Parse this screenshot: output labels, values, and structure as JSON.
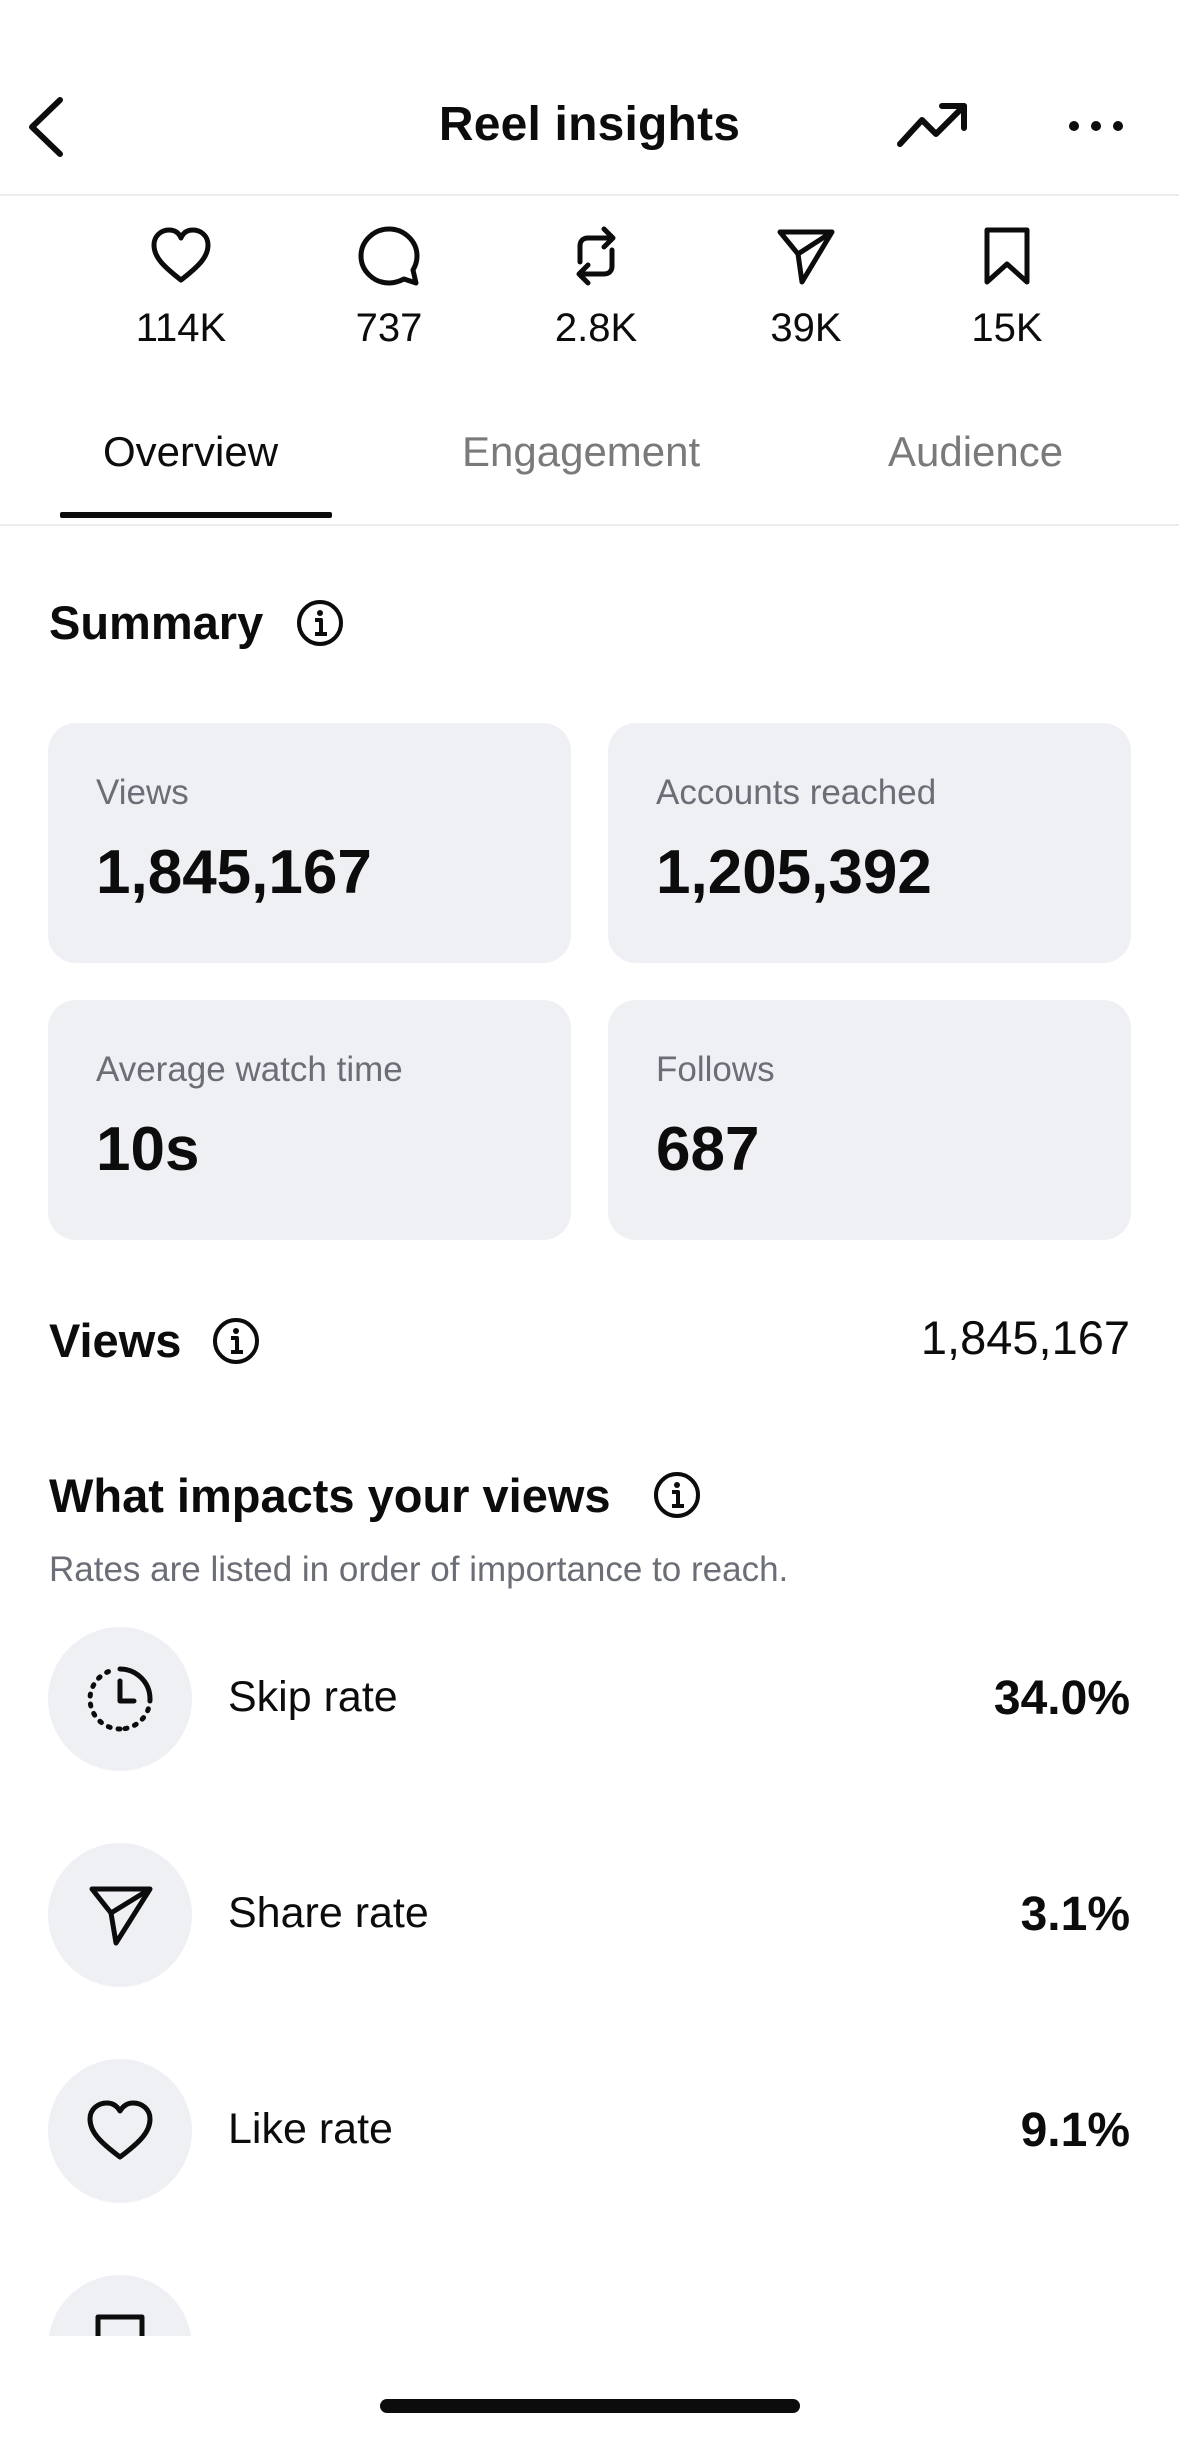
{
  "header": {
    "title": "Reel insights"
  },
  "stats": [
    {
      "icon": "heart-icon",
      "value": "114K"
    },
    {
      "icon": "comment-icon",
      "value": "737"
    },
    {
      "icon": "repost-icon",
      "value": "2.8K"
    },
    {
      "icon": "share-icon",
      "value": "39K"
    },
    {
      "icon": "bookmark-icon",
      "value": "15K"
    }
  ],
  "tabs": [
    "Overview",
    "Engagement",
    "Audience"
  ],
  "active_tab": "Overview",
  "summary": {
    "title": "Summary",
    "cards": [
      {
        "label": "Views",
        "value": "1,845,167"
      },
      {
        "label": "Accounts reached",
        "value": "1,205,392"
      },
      {
        "label": "Average watch time",
        "value": "10s"
      },
      {
        "label": "Follows",
        "value": "687"
      }
    ]
  },
  "views": {
    "title": "Views",
    "total": "1,845,167"
  },
  "impacts": {
    "title": "What impacts your views",
    "subtitle": "Rates are listed in order of importance to reach.",
    "rates": [
      {
        "icon": "clock-dashed-icon",
        "name": "Skip rate",
        "value": "34.0%"
      },
      {
        "icon": "share-icon",
        "name": "Share rate",
        "value": "3.1%"
      },
      {
        "icon": "heart-icon",
        "name": "Like rate",
        "value": "9.1%"
      }
    ]
  }
}
